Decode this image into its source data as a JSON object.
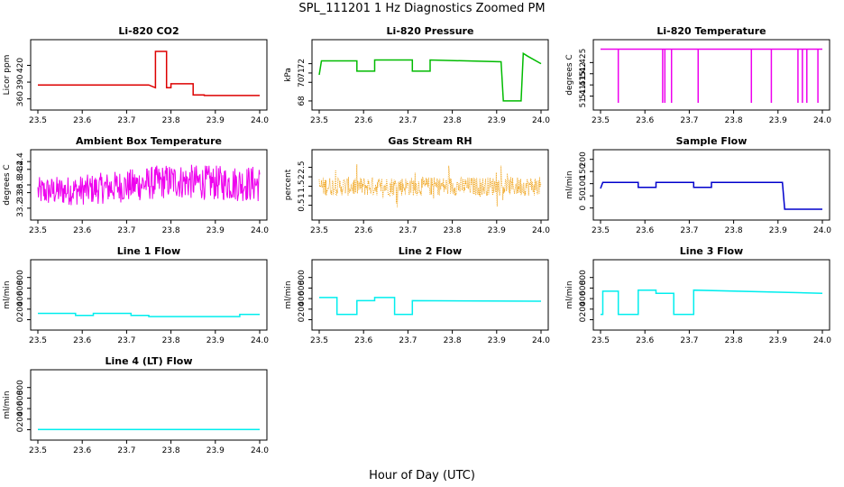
{
  "figure": {
    "title": "SPL_111201  1 Hz Diagnostics Zoomed PM",
    "xlabel": "Hour of Day (UTC)"
  },
  "chart_data": [
    {
      "type": "line",
      "title": "Li-820 CO2",
      "ylabel": "Licor ppm",
      "color": "#dd0000",
      "xlim": [
        23.5,
        24.0
      ],
      "ylim": [
        353,
        453
      ],
      "xticks": [
        23.5,
        23.6,
        23.7,
        23.8,
        23.9,
        24.0
      ],
      "yticks": [
        360,
        390,
        420
      ],
      "series": [
        {
          "x": [
            23.5,
            23.75,
            23.75,
            23.765,
            23.765,
            23.79,
            23.79,
            23.8,
            23.8,
            23.85,
            23.85,
            23.875,
            23.875,
            24.0
          ],
          "y": [
            385,
            385,
            385,
            380,
            445,
            445,
            380,
            380,
            387,
            387,
            367,
            367,
            366,
            366
          ]
        }
      ]
    },
    {
      "type": "line",
      "title": "Li-820 Pressure",
      "ylabel": "kPa",
      "color": "#00bb00",
      "xlim": [
        23.5,
        24.0
      ],
      "ylim": [
        67.8,
        73.8
      ],
      "xticks": [
        23.5,
        23.6,
        23.7,
        23.8,
        23.9,
        24.0
      ],
      "yticks": [
        68,
        70,
        71,
        72
      ],
      "series": [
        {
          "x": [
            23.5,
            23.505,
            23.585,
            23.585,
            23.625,
            23.625,
            23.71,
            23.71,
            23.75,
            23.75,
            23.91,
            23.915,
            23.955,
            23.96,
            23.97,
            24.0
          ],
          "y": [
            70.8,
            72.3,
            72.3,
            71.2,
            71.2,
            72.4,
            72.4,
            71.2,
            71.2,
            72.4,
            72.2,
            68.0,
            68.0,
            73.1,
            72.8,
            72.0
          ]
        }
      ]
    },
    {
      "type": "line",
      "title": "Li-820 Temperature",
      "ylabel": "degrees C",
      "color": "#ee00ee",
      "xlim": [
        23.5,
        24.0
      ],
      "ylim": [
        51.407,
        51.432
      ],
      "xticks": [
        23.5,
        23.6,
        23.7,
        23.8,
        23.9,
        24.0
      ],
      "yticks": [
        51.41,
        51.415,
        51.42,
        51.425
      ],
      "baseline": 51.431,
      "dips": [
        23.54,
        23.64,
        23.645,
        23.66,
        23.72,
        23.84,
        23.885,
        23.945,
        23.955,
        23.965,
        23.99
      ]
    },
    {
      "type": "line",
      "title": "Ambient Box Temperature",
      "ylabel": "degrees C",
      "color": "#ee00ee",
      "xlim": [
        23.5,
        24.0
      ],
      "ylim": [
        33.08,
        34.52
      ],
      "xticks": [
        23.5,
        23.6,
        23.7,
        23.8,
        23.9,
        24.0
      ],
      "yticks": [
        33.2,
        33.6,
        33.8,
        34.2,
        34.4
      ],
      "series": [
        {
          "x": [
            23.5,
            23.6,
            23.7,
            23.8,
            23.9,
            24.0
          ],
          "y_low": [
            33.25,
            33.28,
            33.35,
            33.45,
            33.4,
            33.35
          ],
          "y_high": [
            34.0,
            34.05,
            34.2,
            34.35,
            34.3,
            34.3
          ]
        }
      ]
    },
    {
      "type": "scatter",
      "title": "Gas Stream RH",
      "ylabel": "percent",
      "color": "#ee9900",
      "xlim": [
        23.5,
        24.0
      ],
      "ylim": [
        0.1,
        3.05
      ],
      "xticks": [
        23.5,
        23.6,
        23.7,
        23.8,
        23.9,
        24.0
      ],
      "yticks": [
        0.5,
        1.0,
        1.5,
        2.0,
        2.5
      ],
      "series": [
        {
          "x": [
            23.5,
            24.0
          ],
          "y_low": 1.0,
          "y_high": 2.0,
          "center": 1.55
        }
      ]
    },
    {
      "type": "line",
      "title": "Sample Flow",
      "ylabel": "ml/min",
      "color": "#0000cc",
      "xlim": [
        23.5,
        24.0
      ],
      "ylim": [
        -20,
        210
      ],
      "xticks": [
        23.5,
        23.6,
        23.7,
        23.8,
        23.9,
        24.0
      ],
      "yticks": [
        0,
        50,
        100,
        150,
        200
      ],
      "series": [
        {
          "x": [
            23.5,
            23.505,
            23.585,
            23.585,
            23.625,
            23.625,
            23.71,
            23.71,
            23.75,
            23.75,
            23.91,
            23.915,
            24.0
          ],
          "y": [
            80,
            105,
            105,
            85,
            85,
            105,
            105,
            85,
            85,
            105,
            105,
            -5,
            -5
          ]
        }
      ]
    },
    {
      "type": "line",
      "title": "Line 1 Flow",
      "ylabel": "ml/min",
      "color": "#00eeee",
      "xlim": [
        23.5,
        24.0
      ],
      "ylim": [
        -60,
        1000
      ],
      "xticks": [
        23.5,
        23.6,
        23.7,
        23.8,
        23.9,
        24.0
      ],
      "yticks": [
        0,
        200,
        400,
        600,
        800
      ],
      "series": [
        {
          "x": [
            23.5,
            23.585,
            23.585,
            23.625,
            23.625,
            23.71,
            23.71,
            23.75,
            23.75,
            23.955,
            23.955,
            24.0
          ],
          "y": [
            120,
            120,
            80,
            80,
            120,
            120,
            80,
            80,
            60,
            60,
            100,
            100
          ]
        }
      ]
    },
    {
      "type": "line",
      "title": "Line 2 Flow",
      "ylabel": "ml/min",
      "color": "#00eeee",
      "xlim": [
        23.5,
        24.0
      ],
      "ylim": [
        -60,
        1000
      ],
      "xticks": [
        23.5,
        23.6,
        23.7,
        23.8,
        23.9,
        24.0
      ],
      "yticks": [
        0,
        200,
        400,
        600,
        800
      ],
      "series": [
        {
          "x": [
            23.5,
            23.54,
            23.54,
            23.585,
            23.585,
            23.625,
            23.625,
            23.67,
            23.67,
            23.71,
            23.71,
            24.0
          ],
          "y": [
            420,
            420,
            100,
            100,
            360,
            360,
            420,
            420,
            100,
            100,
            360,
            350
          ]
        }
      ]
    },
    {
      "type": "line",
      "title": "Line 3 Flow",
      "ylabel": "ml/min",
      "color": "#00eeee",
      "xlim": [
        23.5,
        24.0
      ],
      "ylim": [
        -60,
        1000
      ],
      "xticks": [
        23.5,
        23.6,
        23.7,
        23.8,
        23.9,
        24.0
      ],
      "yticks": [
        0,
        200,
        400,
        600,
        800
      ],
      "series": [
        {
          "x": [
            23.5,
            23.505,
            23.505,
            23.54,
            23.54,
            23.585,
            23.585,
            23.625,
            23.625,
            23.665,
            23.665,
            23.71,
            23.71,
            24.0
          ],
          "y": [
            100,
            100,
            540,
            540,
            100,
            100,
            560,
            560,
            500,
            500,
            100,
            100,
            560,
            500
          ]
        }
      ]
    },
    {
      "type": "line",
      "title": "Line 4 (LT) Flow",
      "ylabel": "ml/min",
      "color": "#00eeee",
      "xlim": [
        23.5,
        24.0
      ],
      "ylim": [
        -60,
        1000
      ],
      "xticks": [
        23.5,
        23.6,
        23.7,
        23.8,
        23.9,
        24.0
      ],
      "yticks": [
        0,
        200,
        400,
        600,
        800
      ],
      "series": [
        {
          "x": [
            23.5,
            24.0
          ],
          "y": [
            5,
            5
          ]
        }
      ]
    }
  ]
}
